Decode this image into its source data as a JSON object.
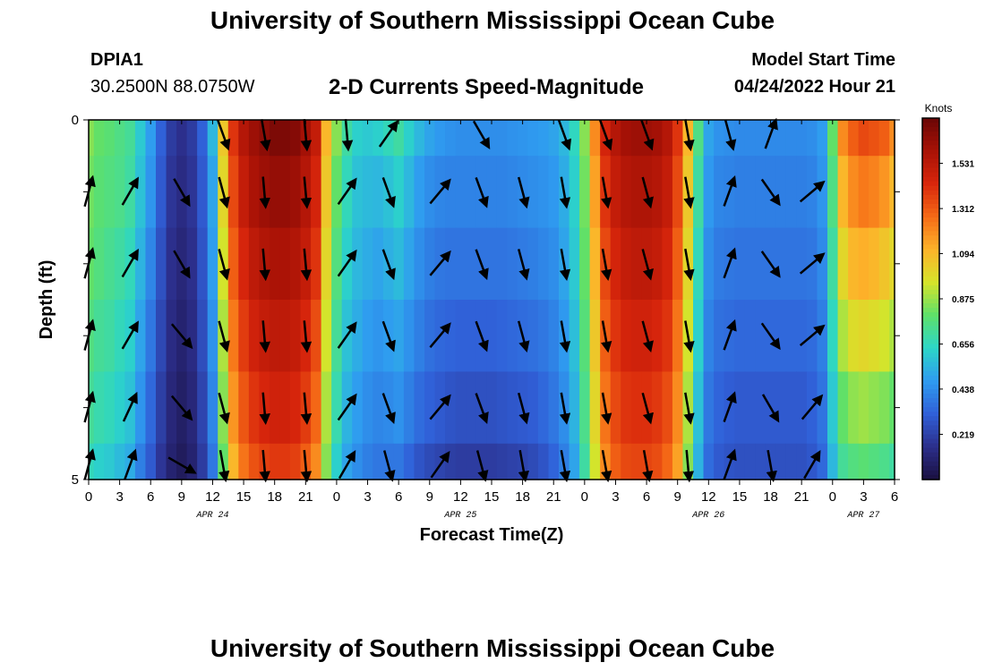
{
  "title": "University of Southern Mississippi Ocean Cube",
  "bottom_title": "University of Southern Mississippi Ocean Cube",
  "station": "DPIA1",
  "coords": "30.2500N  88.0750W",
  "chart_heading": "2-D Currents Speed-Magnitude",
  "model_start_label": "Model Start Time",
  "model_start_value": "04/24/2022 Hour 21",
  "chart_data": {
    "type": "heatmap",
    "title": "2-D Currents Speed-Magnitude",
    "xlabel": "Forecast Time(Z)",
    "ylabel": "Depth (ft)",
    "x_tick_labels": [
      "0",
      "3",
      "6",
      "9",
      "12",
      "15",
      "18",
      "21",
      "0",
      "3",
      "6",
      "9",
      "12",
      "15",
      "18",
      "21",
      "0",
      "3",
      "6",
      "9",
      "12",
      "15",
      "18",
      "21",
      "0",
      "3",
      "6"
    ],
    "x_hours": [
      0,
      3,
      6,
      9,
      12,
      15,
      18,
      21,
      24,
      27,
      30,
      33,
      36,
      39,
      42,
      45,
      48,
      51,
      54,
      57,
      60,
      63,
      66,
      69,
      72,
      75,
      78
    ],
    "date_labels": [
      {
        "label": "APR 24",
        "hour": 12
      },
      {
        "label": "APR 25",
        "hour": 36
      },
      {
        "label": "APR 26",
        "hour": 60
      },
      {
        "label": "APR 27",
        "hour": 75
      }
    ],
    "y_tick_labels": [
      "0",
      "5"
    ],
    "ylim": [
      0,
      5
    ],
    "xlim_hours": [
      0,
      78
    ],
    "colorbar": {
      "unit": "Knots",
      "ticks": [
        "0.219",
        "0.438",
        "0.656",
        "0.875",
        "1.094",
        "1.312",
        "1.531"
      ],
      "tick_values": [
        0.219,
        0.438,
        0.656,
        0.875,
        1.094,
        1.312,
        1.531
      ],
      "min": 0.0,
      "max": 1.75,
      "colors": [
        "#1a1040",
        "#2c2f8c",
        "#3060d8",
        "#2f9cf0",
        "#2cd6c8",
        "#5ee06a",
        "#d6e42a",
        "#fdb32a",
        "#f56a16",
        "#d8260c",
        "#a81206",
        "#6a0606"
      ]
    },
    "speed_time_hours": [
      0,
      1,
      2,
      3,
      4,
      5,
      6,
      7,
      8,
      9,
      10,
      11,
      12,
      13,
      14,
      15,
      16,
      17,
      18,
      19,
      20,
      21,
      22,
      23,
      24,
      25,
      26,
      27,
      28,
      29,
      30,
      31,
      32,
      33,
      34,
      35,
      36,
      37,
      38,
      39,
      40,
      41,
      42,
      43,
      44,
      45,
      46,
      47,
      48,
      49,
      50,
      51,
      52,
      53,
      54,
      55,
      56,
      57,
      58,
      59,
      60,
      61,
      62,
      63,
      64,
      65,
      66,
      67,
      68,
      69,
      70,
      71,
      72,
      73,
      74,
      75,
      76,
      77,
      78
    ],
    "depth_layers": [
      {
        "depth_range": [
          0,
          0.5
        ],
        "speed_knots": [
          0.85,
          0.8,
          0.78,
          0.75,
          0.72,
          0.6,
          0.48,
          0.32,
          0.2,
          0.16,
          0.2,
          0.32,
          0.55,
          1.05,
          1.4,
          1.55,
          1.62,
          1.66,
          1.7,
          1.7,
          1.68,
          1.6,
          1.5,
          1.1,
          0.85,
          0.7,
          0.62,
          0.6,
          0.62,
          0.66,
          0.7,
          0.62,
          0.55,
          0.5,
          0.47,
          0.45,
          0.44,
          0.44,
          0.44,
          0.44,
          0.44,
          0.45,
          0.46,
          0.47,
          0.48,
          0.5,
          0.55,
          0.65,
          0.85,
          1.2,
          1.45,
          1.55,
          1.6,
          1.62,
          1.62,
          1.6,
          1.55,
          1.4,
          1.1,
          0.75,
          0.5,
          0.45,
          0.44,
          0.43,
          0.43,
          0.43,
          0.43,
          0.43,
          0.43,
          0.43,
          0.44,
          0.48,
          0.8,
          1.2,
          1.3,
          1.35,
          1.33,
          1.3,
          1.2
        ]
      },
      {
        "depth_range": [
          0.5,
          1.5
        ],
        "speed_knots": [
          0.82,
          0.78,
          0.76,
          0.74,
          0.7,
          0.58,
          0.46,
          0.3,
          0.18,
          0.14,
          0.18,
          0.3,
          0.5,
          1.0,
          1.35,
          1.5,
          1.58,
          1.62,
          1.64,
          1.64,
          1.62,
          1.55,
          1.45,
          1.05,
          0.8,
          0.66,
          0.58,
          0.56,
          0.55,
          0.58,
          0.62,
          0.55,
          0.48,
          0.44,
          0.42,
          0.41,
          0.41,
          0.41,
          0.41,
          0.41,
          0.41,
          0.42,
          0.43,
          0.44,
          0.45,
          0.47,
          0.52,
          0.62,
          0.82,
          1.15,
          1.4,
          1.5,
          1.55,
          1.57,
          1.57,
          1.55,
          1.5,
          1.35,
          1.05,
          0.7,
          0.47,
          0.42,
          0.41,
          0.4,
          0.4,
          0.4,
          0.4,
          0.4,
          0.4,
          0.4,
          0.41,
          0.46,
          0.75,
          1.1,
          1.2,
          1.24,
          1.22,
          1.18,
          1.1
        ]
      },
      {
        "depth_range": [
          1.5,
          2.5
        ],
        "speed_knots": [
          0.8,
          0.76,
          0.73,
          0.7,
          0.66,
          0.54,
          0.42,
          0.27,
          0.16,
          0.12,
          0.16,
          0.28,
          0.48,
          0.95,
          1.3,
          1.44,
          1.52,
          1.56,
          1.58,
          1.58,
          1.56,
          1.5,
          1.4,
          1.0,
          0.76,
          0.62,
          0.55,
          0.52,
          0.5,
          0.53,
          0.56,
          0.5,
          0.44,
          0.4,
          0.38,
          0.37,
          0.37,
          0.37,
          0.37,
          0.37,
          0.37,
          0.38,
          0.39,
          0.4,
          0.42,
          0.44,
          0.5,
          0.6,
          0.8,
          1.1,
          1.35,
          1.45,
          1.5,
          1.52,
          1.52,
          1.5,
          1.45,
          1.3,
          1.0,
          0.66,
          0.44,
          0.39,
          0.38,
          0.37,
          0.37,
          0.37,
          0.37,
          0.37,
          0.37,
          0.37,
          0.38,
          0.43,
          0.7,
          1.0,
          1.1,
          1.12,
          1.1,
          1.06,
          1.0
        ]
      },
      {
        "depth_range": [
          2.5,
          3.5
        ],
        "speed_knots": [
          0.76,
          0.72,
          0.7,
          0.66,
          0.62,
          0.5,
          0.38,
          0.24,
          0.14,
          0.1,
          0.14,
          0.26,
          0.45,
          0.9,
          1.24,
          1.38,
          1.46,
          1.5,
          1.52,
          1.52,
          1.5,
          1.44,
          1.34,
          0.95,
          0.72,
          0.58,
          0.52,
          0.48,
          0.46,
          0.48,
          0.5,
          0.45,
          0.4,
          0.36,
          0.34,
          0.33,
          0.32,
          0.32,
          0.32,
          0.32,
          0.33,
          0.34,
          0.35,
          0.36,
          0.38,
          0.41,
          0.47,
          0.57,
          0.77,
          1.05,
          1.3,
          1.4,
          1.45,
          1.46,
          1.46,
          1.44,
          1.4,
          1.25,
          0.95,
          0.62,
          0.41,
          0.36,
          0.35,
          0.34,
          0.34,
          0.34,
          0.34,
          0.34,
          0.34,
          0.34,
          0.35,
          0.4,
          0.65,
          0.9,
          0.98,
          1.0,
          0.98,
          0.95,
          0.9
        ]
      },
      {
        "depth_range": [
          3.5,
          4.5
        ],
        "speed_knots": [
          0.72,
          0.68,
          0.66,
          0.62,
          0.58,
          0.46,
          0.34,
          0.21,
          0.12,
          0.08,
          0.12,
          0.23,
          0.42,
          0.85,
          1.18,
          1.32,
          1.4,
          1.44,
          1.46,
          1.46,
          1.44,
          1.38,
          1.28,
          0.9,
          0.68,
          0.54,
          0.48,
          0.44,
          0.42,
          0.43,
          0.45,
          0.4,
          0.35,
          0.32,
          0.3,
          0.28,
          0.27,
          0.27,
          0.27,
          0.27,
          0.28,
          0.29,
          0.3,
          0.31,
          0.34,
          0.38,
          0.44,
          0.54,
          0.74,
          1.0,
          1.25,
          1.35,
          1.4,
          1.41,
          1.41,
          1.39,
          1.34,
          1.2,
          0.9,
          0.58,
          0.38,
          0.33,
          0.31,
          0.3,
          0.3,
          0.3,
          0.3,
          0.3,
          0.3,
          0.3,
          0.32,
          0.37,
          0.6,
          0.8,
          0.86,
          0.88,
          0.86,
          0.84,
          0.8
        ]
      },
      {
        "depth_range": [
          4.5,
          5
        ],
        "speed_knots": [
          0.66,
          0.62,
          0.6,
          0.56,
          0.52,
          0.4,
          0.3,
          0.18,
          0.1,
          0.06,
          0.1,
          0.2,
          0.38,
          0.8,
          1.1,
          1.25,
          1.33,
          1.37,
          1.39,
          1.39,
          1.37,
          1.3,
          1.2,
          0.85,
          0.62,
          0.5,
          0.44,
          0.4,
          0.38,
          0.38,
          0.38,
          0.33,
          0.28,
          0.25,
          0.23,
          0.21,
          0.2,
          0.2,
          0.2,
          0.2,
          0.21,
          0.22,
          0.23,
          0.25,
          0.28,
          0.33,
          0.4,
          0.5,
          0.7,
          0.95,
          1.2,
          1.3,
          1.35,
          1.36,
          1.36,
          1.34,
          1.28,
          1.15,
          0.85,
          0.54,
          0.35,
          0.3,
          0.28,
          0.27,
          0.27,
          0.27,
          0.27,
          0.27,
          0.27,
          0.27,
          0.29,
          0.34,
          0.55,
          0.72,
          0.76,
          0.78,
          0.76,
          0.74,
          0.7
        ]
      }
    ],
    "arrow_hours": [
      0,
      4,
      9,
      13,
      17,
      21,
      25,
      29,
      34,
      38,
      42,
      46,
      50,
      54,
      58,
      62,
      66,
      70,
      74
    ],
    "arrow_depths": [
      0.2,
      1.0,
      2.0,
      3.0,
      4.0,
      4.8
    ],
    "arrow_directions_deg": [
      [
        null,
        null,
        null,
        160,
        170,
        175,
        175,
        35,
        null,
        150,
        null,
        160,
        160,
        160,
        170,
        165,
        20,
        null,
        null
      ],
      [
        15,
        30,
        150,
        165,
        175,
        175,
        35,
        160,
        40,
        160,
        165,
        170,
        170,
        165,
        170,
        20,
        145,
        50,
        null
      ],
      [
        15,
        30,
        150,
        165,
        175,
        175,
        35,
        160,
        40,
        160,
        165,
        170,
        170,
        165,
        170,
        20,
        145,
        50,
        null
      ],
      [
        15,
        30,
        140,
        165,
        175,
        175,
        35,
        160,
        40,
        160,
        165,
        170,
        170,
        165,
        170,
        20,
        145,
        50,
        null
      ],
      [
        15,
        25,
        140,
        165,
        175,
        175,
        35,
        160,
        40,
        160,
        165,
        170,
        170,
        165,
        170,
        20,
        150,
        40,
        null
      ],
      [
        15,
        20,
        120,
        170,
        175,
        175,
        30,
        165,
        35,
        165,
        170,
        170,
        170,
        170,
        175,
        20,
        170,
        30,
        null
      ]
    ]
  }
}
